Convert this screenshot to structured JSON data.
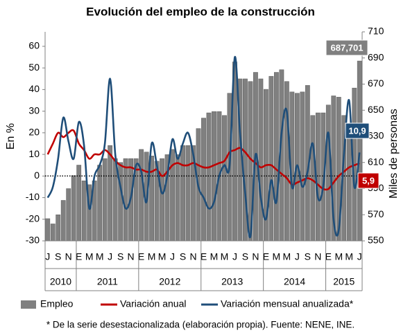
{
  "chart_data": {
    "type": "bar-line",
    "title": "Evolución del empleo de la construcción",
    "y_label": "En %",
    "y2_label": "Miles de personas",
    "footnote": "* De la serie desestacionalizada (elaboración propia). Fuente: NENE, INE.",
    "categories": [
      "J",
      null,
      "S",
      null,
      "N",
      null,
      "E",
      null,
      "M",
      null,
      "M",
      null,
      "J",
      null,
      "S",
      null,
      "N",
      null,
      "E",
      null,
      "M",
      null,
      "M",
      null,
      "J",
      null,
      "S",
      null,
      "N",
      null,
      "E",
      null,
      "M",
      null,
      "M",
      null,
      "J",
      null,
      "S",
      null,
      "N",
      null,
      "E",
      null,
      "M",
      null,
      "M",
      null,
      "J",
      null,
      "S",
      null,
      "N",
      null,
      "E",
      null,
      "M",
      null,
      "M",
      null,
      "J"
    ],
    "years": [
      "2010",
      "2011",
      "2012",
      "2013",
      "2014",
      "2015"
    ],
    "ylim": [
      -30,
      66.7
    ],
    "yticks": [
      -30,
      -20,
      -10,
      0,
      10,
      20,
      30,
      40,
      50,
      60
    ],
    "y2lim": [
      550,
      710
    ],
    "y2ticks": [
      550,
      570,
      590,
      610,
      630,
      650,
      670,
      690,
      710
    ],
    "series": [
      {
        "name": "Empleo",
        "type": "bar",
        "axis": "y2",
        "color": "#808080",
        "values": [
          567,
          563,
          570,
          581,
          590,
          600,
          608,
          596,
          593,
          596,
          608,
          613,
          623,
          613,
          610,
          613,
          613,
          613,
          620,
          618,
          615,
          611,
          613,
          616,
          620,
          616,
          623,
          623,
          623,
          636,
          644,
          648,
          649,
          649,
          646,
          663,
          687,
          674,
          674,
          672,
          679,
          674,
          666,
          676,
          679,
          681,
          672,
          664,
          663,
          664,
          669,
          646,
          648,
          648,
          654,
          661,
          660,
          646,
          636,
          667,
          687.701
        ],
        "value_labels": [
          null,
          null,
          null,
          null,
          null,
          null,
          null,
          null,
          null,
          null,
          null,
          null,
          null,
          null,
          null,
          null,
          null,
          null,
          null,
          null,
          null,
          null,
          null,
          null,
          null,
          null,
          null,
          null,
          null,
          null,
          null,
          null,
          null,
          null,
          null,
          null,
          null,
          null,
          null,
          null,
          null,
          null,
          null,
          null,
          null,
          null,
          null,
          null,
          null,
          null,
          null,
          null,
          null,
          null,
          null,
          null,
          null,
          null,
          null,
          null,
          "687,701"
        ]
      },
      {
        "name": "Variación anual",
        "type": "line",
        "color": "#c00000",
        "values": [
          10,
          15,
          20,
          18,
          20,
          21,
          15,
          12,
          8,
          10,
          10,
          12,
          10,
          7,
          5,
          4,
          4,
          3,
          3,
          2,
          2,
          3,
          0,
          2,
          5,
          6,
          5,
          5,
          6,
          5,
          4,
          4,
          5,
          6,
          7,
          11,
          12,
          13,
          11,
          8,
          6,
          4,
          5,
          5,
          3,
          1,
          -1,
          -4,
          -3,
          -2,
          -1,
          -2,
          -4,
          -6,
          -6,
          -3,
          0,
          2,
          4,
          5,
          5.9
        ],
        "value_labels": [
          null,
          null,
          null,
          null,
          null,
          null,
          null,
          null,
          null,
          null,
          null,
          null,
          null,
          null,
          null,
          null,
          null,
          null,
          null,
          null,
          null,
          null,
          null,
          null,
          null,
          null,
          null,
          null,
          null,
          null,
          null,
          null,
          null,
          null,
          null,
          null,
          null,
          null,
          null,
          null,
          null,
          null,
          null,
          null,
          null,
          null,
          null,
          null,
          null,
          null,
          null,
          null,
          null,
          null,
          null,
          null,
          null,
          null,
          null,
          null,
          "5,9"
        ]
      },
      {
        "name": "Variación mensual anualizada*",
        "type": "line",
        "color": "#1f4e79",
        "values": [
          -10,
          -5,
          8,
          27,
          16,
          8,
          25,
          14,
          -15,
          0,
          5,
          15,
          45,
          10,
          -5,
          -15,
          -10,
          5,
          2,
          -12,
          15,
          5,
          -8,
          0,
          17,
          8,
          15,
          20,
          10,
          -5,
          -10,
          -15,
          -12,
          0,
          5,
          5,
          55,
          20,
          -8,
          -28,
          10,
          -10,
          -20,
          -2,
          -12,
          20,
          30,
          -5,
          5,
          -5,
          2,
          15,
          -10,
          -5,
          20,
          -20,
          -25,
          10,
          35,
          -5,
          10.9
        ],
        "value_labels": [
          null,
          null,
          null,
          null,
          null,
          null,
          null,
          null,
          null,
          null,
          null,
          null,
          null,
          null,
          null,
          null,
          null,
          null,
          null,
          null,
          null,
          null,
          null,
          null,
          null,
          null,
          null,
          null,
          null,
          null,
          null,
          null,
          null,
          null,
          null,
          null,
          null,
          null,
          null,
          null,
          null,
          null,
          null,
          null,
          null,
          null,
          null,
          null,
          null,
          null,
          null,
          null,
          null,
          null,
          null,
          null,
          null,
          null,
          null,
          null,
          "10,9"
        ]
      }
    ]
  }
}
